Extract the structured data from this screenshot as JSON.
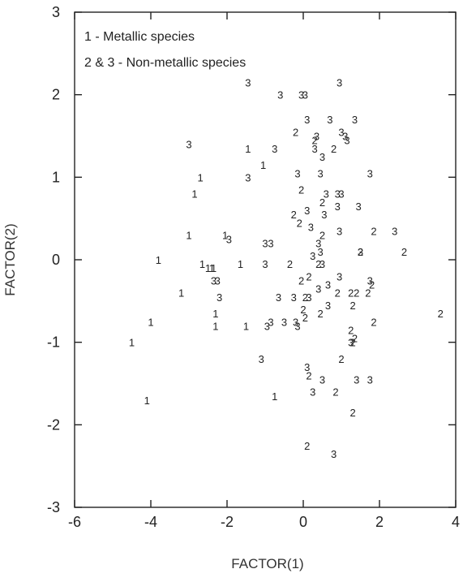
{
  "chart_data": {
    "type": "scatter",
    "title": "",
    "xlabel": "FACTOR(1)",
    "ylabel": "FACTOR(2)",
    "xlim": [
      -6,
      4
    ],
    "ylim": [
      -3,
      3
    ],
    "xticks": [
      -6,
      -4,
      -2,
      0,
      2,
      4
    ],
    "yticks": [
      -3,
      -2,
      -1,
      0,
      1,
      2,
      3
    ],
    "xtick_labels": [
      "-6",
      "-4",
      "-2",
      "0",
      "2",
      "4"
    ],
    "ytick_labels": [
      "-3",
      "-2",
      "-1",
      "0",
      "1",
      "2",
      "3"
    ],
    "grid": false,
    "marker": "digit label (1, 2 or 3) printed at each point",
    "legend": {
      "position": "top-left",
      "entries": [
        "1 - Metallic species",
        "2 & 3 - Non-metallic species"
      ]
    },
    "points": [
      {
        "x": -4.5,
        "y": -1.0,
        "label": "1"
      },
      {
        "x": -4.1,
        "y": -1.7,
        "label": "1"
      },
      {
        "x": -4.0,
        "y": -0.75,
        "label": "1"
      },
      {
        "x": -3.8,
        "y": 0.0,
        "label": "1"
      },
      {
        "x": -3.2,
        "y": -0.4,
        "label": "1"
      },
      {
        "x": -3.0,
        "y": 0.3,
        "label": "1"
      },
      {
        "x": -2.85,
        "y": 0.8,
        "label": "1"
      },
      {
        "x": -2.7,
        "y": 1.0,
        "label": "1"
      },
      {
        "x": -2.65,
        "y": -0.05,
        "label": "1"
      },
      {
        "x": -2.5,
        "y": -0.1,
        "label": "1"
      },
      {
        "x": -2.4,
        "y": -0.1,
        "label": "1"
      },
      {
        "x": -2.35,
        "y": -0.1,
        "label": "1"
      },
      {
        "x": -2.3,
        "y": -0.65,
        "label": "1"
      },
      {
        "x": -2.3,
        "y": -0.8,
        "label": "1"
      },
      {
        "x": -2.05,
        "y": 0.3,
        "label": "1"
      },
      {
        "x": -1.65,
        "y": -0.05,
        "label": "1"
      },
      {
        "x": -1.5,
        "y": -0.8,
        "label": "1"
      },
      {
        "x": -1.45,
        "y": 1.35,
        "label": "1"
      },
      {
        "x": -1.05,
        "y": 1.15,
        "label": "1"
      },
      {
        "x": -0.75,
        "y": -1.65,
        "label": "1"
      },
      {
        "x": -3.0,
        "y": 1.4,
        "label": "3"
      },
      {
        "x": -2.35,
        "y": -0.25,
        "label": "3"
      },
      {
        "x": -2.25,
        "y": -0.25,
        "label": "3"
      },
      {
        "x": -2.2,
        "y": -0.45,
        "label": "3"
      },
      {
        "x": -1.95,
        "y": 0.25,
        "label": "3"
      },
      {
        "x": -1.45,
        "y": 2.15,
        "label": "3"
      },
      {
        "x": -1.45,
        "y": 1.0,
        "label": "3"
      },
      {
        "x": -1.0,
        "y": 0.2,
        "label": "3"
      },
      {
        "x": -1.0,
        "y": -0.05,
        "label": "3"
      },
      {
        "x": -0.95,
        "y": -0.8,
        "label": "3"
      },
      {
        "x": -0.85,
        "y": -0.75,
        "label": "3"
      },
      {
        "x": -0.85,
        "y": 0.2,
        "label": "3"
      },
      {
        "x": -0.75,
        "y": 1.35,
        "label": "3"
      },
      {
        "x": -0.65,
        "y": -0.45,
        "label": "3"
      },
      {
        "x": -0.6,
        "y": 2.0,
        "label": "3"
      },
      {
        "x": -0.5,
        "y": -0.75,
        "label": "3"
      },
      {
        "x": -1.1,
        "y": -1.2,
        "label": "3"
      },
      {
        "x": -0.25,
        "y": -0.45,
        "label": "3"
      },
      {
        "x": -0.2,
        "y": -0.75,
        "label": "3"
      },
      {
        "x": -0.15,
        "y": -0.8,
        "label": "3"
      },
      {
        "x": -0.15,
        "y": 1.05,
        "label": "3"
      },
      {
        "x": -0.05,
        "y": 2.0,
        "label": "3"
      },
      {
        "x": 0.05,
        "y": 2.0,
        "label": "3"
      },
      {
        "x": 0.1,
        "y": 1.7,
        "label": "3"
      },
      {
        "x": 0.1,
        "y": 0.6,
        "label": "3"
      },
      {
        "x": 0.1,
        "y": -1.3,
        "label": "3"
      },
      {
        "x": 0.15,
        "y": -0.45,
        "label": "3"
      },
      {
        "x": 0.2,
        "y": 0.4,
        "label": "3"
      },
      {
        "x": 0.25,
        "y": 0.05,
        "label": "3"
      },
      {
        "x": 0.25,
        "y": -1.6,
        "label": "3"
      },
      {
        "x": 0.3,
        "y": 1.35,
        "label": "3"
      },
      {
        "x": 0.35,
        "y": 1.5,
        "label": "3"
      },
      {
        "x": 0.4,
        "y": 0.2,
        "label": "3"
      },
      {
        "x": 0.4,
        "y": -0.35,
        "label": "3"
      },
      {
        "x": 0.45,
        "y": 0.1,
        "label": "3"
      },
      {
        "x": 0.45,
        "y": 1.05,
        "label": "3"
      },
      {
        "x": 0.5,
        "y": 1.25,
        "label": "3"
      },
      {
        "x": 0.5,
        "y": -0.05,
        "label": "3"
      },
      {
        "x": 0.5,
        "y": -1.45,
        "label": "3"
      },
      {
        "x": 0.55,
        "y": 0.55,
        "label": "3"
      },
      {
        "x": 0.6,
        "y": 0.8,
        "label": "3"
      },
      {
        "x": 0.65,
        "y": -0.3,
        "label": "3"
      },
      {
        "x": 0.65,
        "y": -0.55,
        "label": "3"
      },
      {
        "x": 0.7,
        "y": 1.7,
        "label": "3"
      },
      {
        "x": 0.9,
        "y": 0.8,
        "label": "3"
      },
      {
        "x": 0.9,
        "y": 0.65,
        "label": "3"
      },
      {
        "x": 0.95,
        "y": 2.15,
        "label": "3"
      },
      {
        "x": 0.95,
        "y": 0.35,
        "label": "3"
      },
      {
        "x": 0.95,
        "y": -0.2,
        "label": "3"
      },
      {
        "x": 1.0,
        "y": 1.55,
        "label": "3"
      },
      {
        "x": 1.0,
        "y": 0.8,
        "label": "3"
      },
      {
        "x": 1.1,
        "y": 1.5,
        "label": "3"
      },
      {
        "x": 1.15,
        "y": 1.45,
        "label": "3"
      },
      {
        "x": 1.25,
        "y": -1.0,
        "label": "3"
      },
      {
        "x": 1.35,
        "y": 1.7,
        "label": "3"
      },
      {
        "x": 1.4,
        "y": -1.45,
        "label": "3"
      },
      {
        "x": 1.45,
        "y": 0.65,
        "label": "3"
      },
      {
        "x": 1.5,
        "y": 0.1,
        "label": "3"
      },
      {
        "x": 1.75,
        "y": -1.45,
        "label": "3"
      },
      {
        "x": 1.75,
        "y": 1.05,
        "label": "3"
      },
      {
        "x": 1.75,
        "y": -0.25,
        "label": "3"
      },
      {
        "x": 2.4,
        "y": 0.35,
        "label": "3"
      },
      {
        "x": -0.35,
        "y": -0.05,
        "label": "2"
      },
      {
        "x": -0.25,
        "y": 0.55,
        "label": "2"
      },
      {
        "x": -0.1,
        "y": 0.45,
        "label": "2"
      },
      {
        "x": -0.05,
        "y": 0.85,
        "label": "2"
      },
      {
        "x": -0.05,
        "y": -0.25,
        "label": "2"
      },
      {
        "x": 0.0,
        "y": -0.6,
        "label": "2"
      },
      {
        "x": -0.2,
        "y": 1.55,
        "label": "2"
      },
      {
        "x": 0.05,
        "y": -0.7,
        "label": "2"
      },
      {
        "x": 0.1,
        "y": -2.25,
        "label": "2"
      },
      {
        "x": 0.15,
        "y": -1.4,
        "label": "2"
      },
      {
        "x": 0.3,
        "y": 1.45,
        "label": "2"
      },
      {
        "x": 0.4,
        "y": -0.05,
        "label": "2"
      },
      {
        "x": 0.45,
        "y": -0.65,
        "label": "2"
      },
      {
        "x": 0.5,
        "y": 0.3,
        "label": "2"
      },
      {
        "x": 0.5,
        "y": 0.7,
        "label": "2"
      },
      {
        "x": 0.8,
        "y": 1.35,
        "label": "2"
      },
      {
        "x": 0.85,
        "y": -1.6,
        "label": "2"
      },
      {
        "x": 0.9,
        "y": -0.4,
        "label": "2"
      },
      {
        "x": 1.0,
        "y": -1.2,
        "label": "2"
      },
      {
        "x": 1.25,
        "y": -0.4,
        "label": "2"
      },
      {
        "x": 1.25,
        "y": -0.85,
        "label": "2"
      },
      {
        "x": 1.3,
        "y": -1.85,
        "label": "2"
      },
      {
        "x": 1.3,
        "y": -0.55,
        "label": "2"
      },
      {
        "x": 1.3,
        "y": -1.0,
        "label": "2"
      },
      {
        "x": 1.35,
        "y": -0.95,
        "label": "2"
      },
      {
        "x": 1.4,
        "y": -0.4,
        "label": "2"
      },
      {
        "x": 1.5,
        "y": 0.1,
        "label": "2"
      },
      {
        "x": 1.7,
        "y": -0.4,
        "label": "2"
      },
      {
        "x": 1.8,
        "y": -0.3,
        "label": "2"
      },
      {
        "x": 1.85,
        "y": -0.75,
        "label": "2"
      },
      {
        "x": 1.85,
        "y": 0.35,
        "label": "2"
      },
      {
        "x": 2.65,
        "y": 0.1,
        "label": "2"
      },
      {
        "x": 3.6,
        "y": -0.65,
        "label": "2"
      },
      {
        "x": 0.05,
        "y": -0.45,
        "label": "2"
      },
      {
        "x": 0.15,
        "y": -0.2,
        "label": "2"
      },
      {
        "x": 0.8,
        "y": -2.35,
        "label": "3"
      }
    ]
  }
}
